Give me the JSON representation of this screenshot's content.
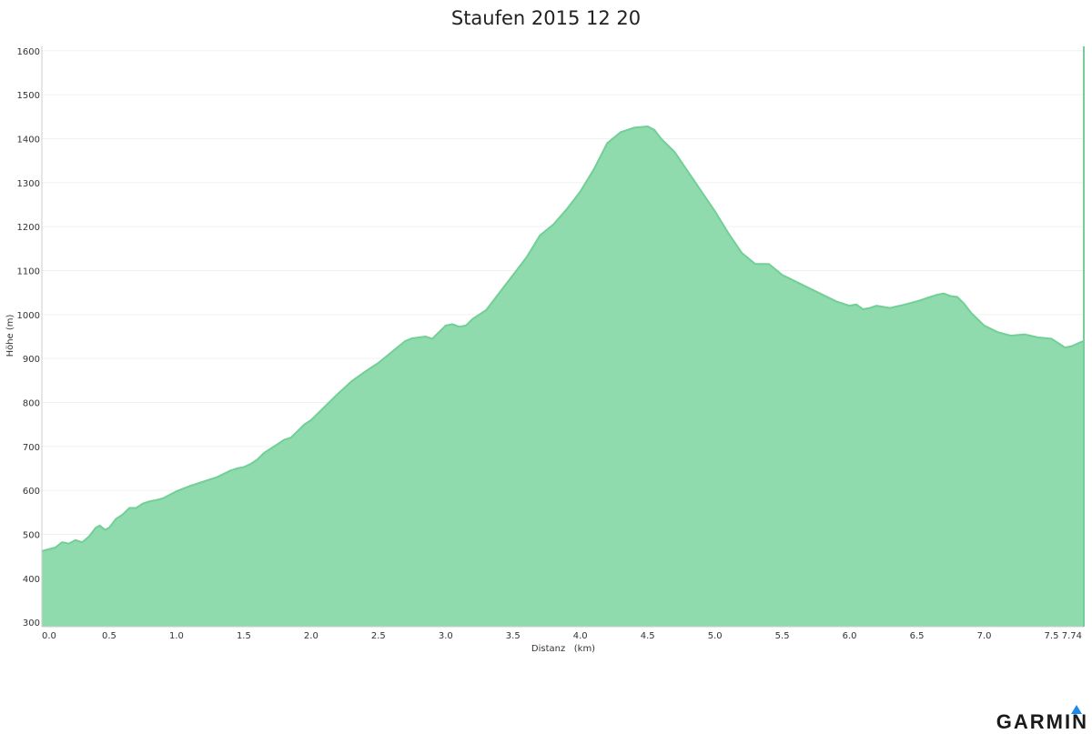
{
  "chart_data": {
    "type": "area",
    "title": "Staufen 2015 12 20",
    "xlabel": "Distanz   (km)",
    "ylabel": "Höhe (m)",
    "xlim": [
      0,
      7.74
    ],
    "ylim": [
      290,
      1610
    ],
    "x_ticks": [
      "0.0",
      "0.5",
      "1.0",
      "1.5",
      "2.0",
      "2.5",
      "3.0",
      "3.5",
      "4.0",
      "4.5",
      "5.0",
      "5.5",
      "6.0",
      "6.5",
      "7.0",
      "7.5",
      "7.74"
    ],
    "x_tick_values": [
      0,
      0.5,
      1.0,
      1.5,
      2.0,
      2.5,
      3.0,
      3.5,
      4.0,
      4.5,
      5.0,
      5.5,
      6.0,
      6.5,
      7.0,
      7.5,
      7.74
    ],
    "y_ticks": [
      "300",
      "400",
      "500",
      "600",
      "700",
      "800",
      "900",
      "1000",
      "1100",
      "1200",
      "1300",
      "1400",
      "1500",
      "1600"
    ],
    "y_tick_values": [
      300,
      400,
      500,
      600,
      700,
      800,
      900,
      1000,
      1100,
      1200,
      1300,
      1400,
      1500,
      1600
    ],
    "grid": true,
    "fill_color": "#8fdbad",
    "line_color": "#72cf96",
    "x": [
      0,
      0.1,
      0.15,
      0.2,
      0.25,
      0.3,
      0.35,
      0.4,
      0.43,
      0.47,
      0.5,
      0.55,
      0.6,
      0.65,
      0.7,
      0.75,
      0.8,
      0.85,
      0.9,
      0.95,
      1.0,
      1.1,
      1.2,
      1.3,
      1.4,
      1.45,
      1.5,
      1.55,
      1.6,
      1.65,
      1.7,
      1.75,
      1.8,
      1.85,
      1.9,
      1.95,
      2.0,
      2.1,
      2.2,
      2.3,
      2.4,
      2.5,
      2.6,
      2.7,
      2.75,
      2.8,
      2.85,
      2.9,
      2.95,
      3.0,
      3.05,
      3.1,
      3.15,
      3.2,
      3.25,
      3.3,
      3.35,
      3.4,
      3.5,
      3.6,
      3.7,
      3.8,
      3.9,
      4.0,
      4.1,
      4.2,
      4.3,
      4.4,
      4.5,
      4.55,
      4.6,
      4.65,
      4.7,
      4.8,
      4.9,
      5.0,
      5.1,
      5.2,
      5.3,
      5.4,
      5.5,
      5.6,
      5.7,
      5.8,
      5.9,
      6.0,
      6.05,
      6.1,
      6.15,
      6.2,
      6.3,
      6.4,
      6.5,
      6.55,
      6.6,
      6.65,
      6.7,
      6.75,
      6.8,
      6.85,
      6.9,
      7.0,
      7.1,
      7.2,
      7.3,
      7.4,
      7.5,
      7.55,
      7.6,
      7.65,
      7.7,
      7.74
    ],
    "y": [
      462,
      470,
      482,
      479,
      487,
      482,
      495,
      515,
      520,
      510,
      515,
      535,
      545,
      560,
      560,
      570,
      575,
      578,
      582,
      590,
      598,
      610,
      620,
      630,
      645,
      650,
      653,
      660,
      670,
      685,
      695,
      705,
      715,
      720,
      735,
      750,
      760,
      790,
      820,
      848,
      870,
      890,
      915,
      940,
      946,
      948,
      950,
      945,
      960,
      975,
      978,
      972,
      975,
      990,
      1000,
      1010,
      1030,
      1050,
      1090,
      1130,
      1180,
      1205,
      1240,
      1280,
      1330,
      1390,
      1415,
      1425,
      1428,
      1420,
      1400,
      1385,
      1370,
      1325,
      1280,
      1235,
      1185,
      1140,
      1115,
      1115,
      1090,
      1075,
      1060,
      1045,
      1030,
      1020,
      1023,
      1012,
      1015,
      1020,
      1015,
      1022,
      1030,
      1035,
      1040,
      1045,
      1048,
      1042,
      1040,
      1025,
      1005,
      975,
      960,
      952,
      955,
      948,
      945,
      935,
      925,
      928,
      935,
      940
    ]
  },
  "brand": {
    "logo_text": "GARMIN",
    "logo_color": "#1a8be8"
  }
}
